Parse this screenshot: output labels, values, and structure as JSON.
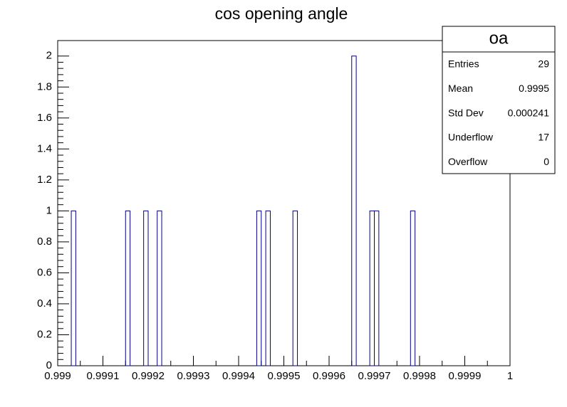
{
  "chart_data": {
    "type": "histogram",
    "title": "cos opening angle",
    "color": "#000080",
    "bins": [
      0.999,
      0.99901,
      0.99902,
      0.99903,
      0.99904,
      0.99905,
      0.99906,
      0.99907,
      0.99908,
      0.99909,
      0.9991,
      0.99911,
      0.99912,
      0.99913,
      0.99914,
      0.99915,
      0.99916,
      0.99917,
      0.99918,
      0.99919,
      0.9992,
      0.99921,
      0.99922,
      0.99923,
      0.99924,
      0.99925,
      0.99926,
      0.99927,
      0.99928,
      0.99929,
      0.9993,
      0.99931,
      0.99932,
      0.99933,
      0.99934,
      0.99935,
      0.99936,
      0.99937,
      0.99938,
      0.99939,
      0.9994,
      0.99941,
      0.99942,
      0.99943,
      0.99944,
      0.99945,
      0.99946,
      0.99947,
      0.99948,
      0.99949,
      0.9995,
      0.99951,
      0.99952,
      0.99953,
      0.99954,
      0.99955,
      0.99956,
      0.99957,
      0.99958,
      0.99959,
      0.9996,
      0.99961,
      0.99962,
      0.99963,
      0.99964,
      0.99965,
      0.99966,
      0.99967,
      0.99968,
      0.99969,
      0.9997,
      0.99971,
      0.99972,
      0.99973,
      0.99974,
      0.99975,
      0.99976,
      0.99977,
      0.99978,
      0.99979,
      0.9998,
      0.99981,
      0.99982,
      0.99983,
      0.99984,
      0.99985,
      0.99986,
      0.99987,
      0.99988,
      0.99989,
      0.9999,
      0.99991,
      0.99992,
      0.99993,
      0.99994,
      0.99995,
      0.99996,
      0.99997,
      0.99998,
      0.99999,
      1
    ],
    "counts": [
      0,
      0,
      0,
      1,
      0,
      0,
      0,
      0,
      0,
      0,
      0,
      0,
      0,
      0,
      0,
      1,
      0,
      0,
      0,
      1,
      0,
      0,
      1,
      0,
      0,
      0,
      0,
      0,
      0,
      0,
      0,
      0,
      0,
      0,
      0,
      0,
      0,
      0,
      0,
      0,
      0,
      0,
      0,
      0,
      1,
      0,
      1,
      0,
      0,
      0,
      0,
      0,
      1,
      0,
      0,
      0,
      0,
      0,
      0,
      0,
      0,
      0,
      0,
      0,
      0,
      2,
      0,
      0,
      0,
      1,
      1,
      0,
      0,
      0,
      0,
      0,
      0,
      0,
      1,
      0,
      0,
      0,
      0,
      0,
      0,
      0,
      0,
      0,
      0,
      0,
      0,
      0,
      0,
      0,
      0,
      0,
      0,
      0,
      0,
      0
    ],
    "xlim": [
      0.999,
      1
    ],
    "ylim": [
      0,
      2.1
    ],
    "xticks": [
      0.999,
      0.9991,
      0.9992,
      0.9993,
      0.9994,
      0.9995,
      0.9996,
      0.9997,
      0.9998,
      0.9999,
      1
    ],
    "yticks": [
      0,
      0.2,
      0.4,
      0.6,
      0.8,
      1,
      1.2,
      1.4,
      1.6,
      1.8,
      2
    ],
    "stats": {
      "title": "oa",
      "rows": [
        {
          "label": "Entries",
          "value": 29
        },
        {
          "label": "Mean",
          "value": 0.9995
        },
        {
          "label": "Std Dev",
          "value": 0.000241
        },
        {
          "label": "Underflow",
          "value": 17
        },
        {
          "label": "Overflow",
          "value": 0
        }
      ]
    }
  }
}
